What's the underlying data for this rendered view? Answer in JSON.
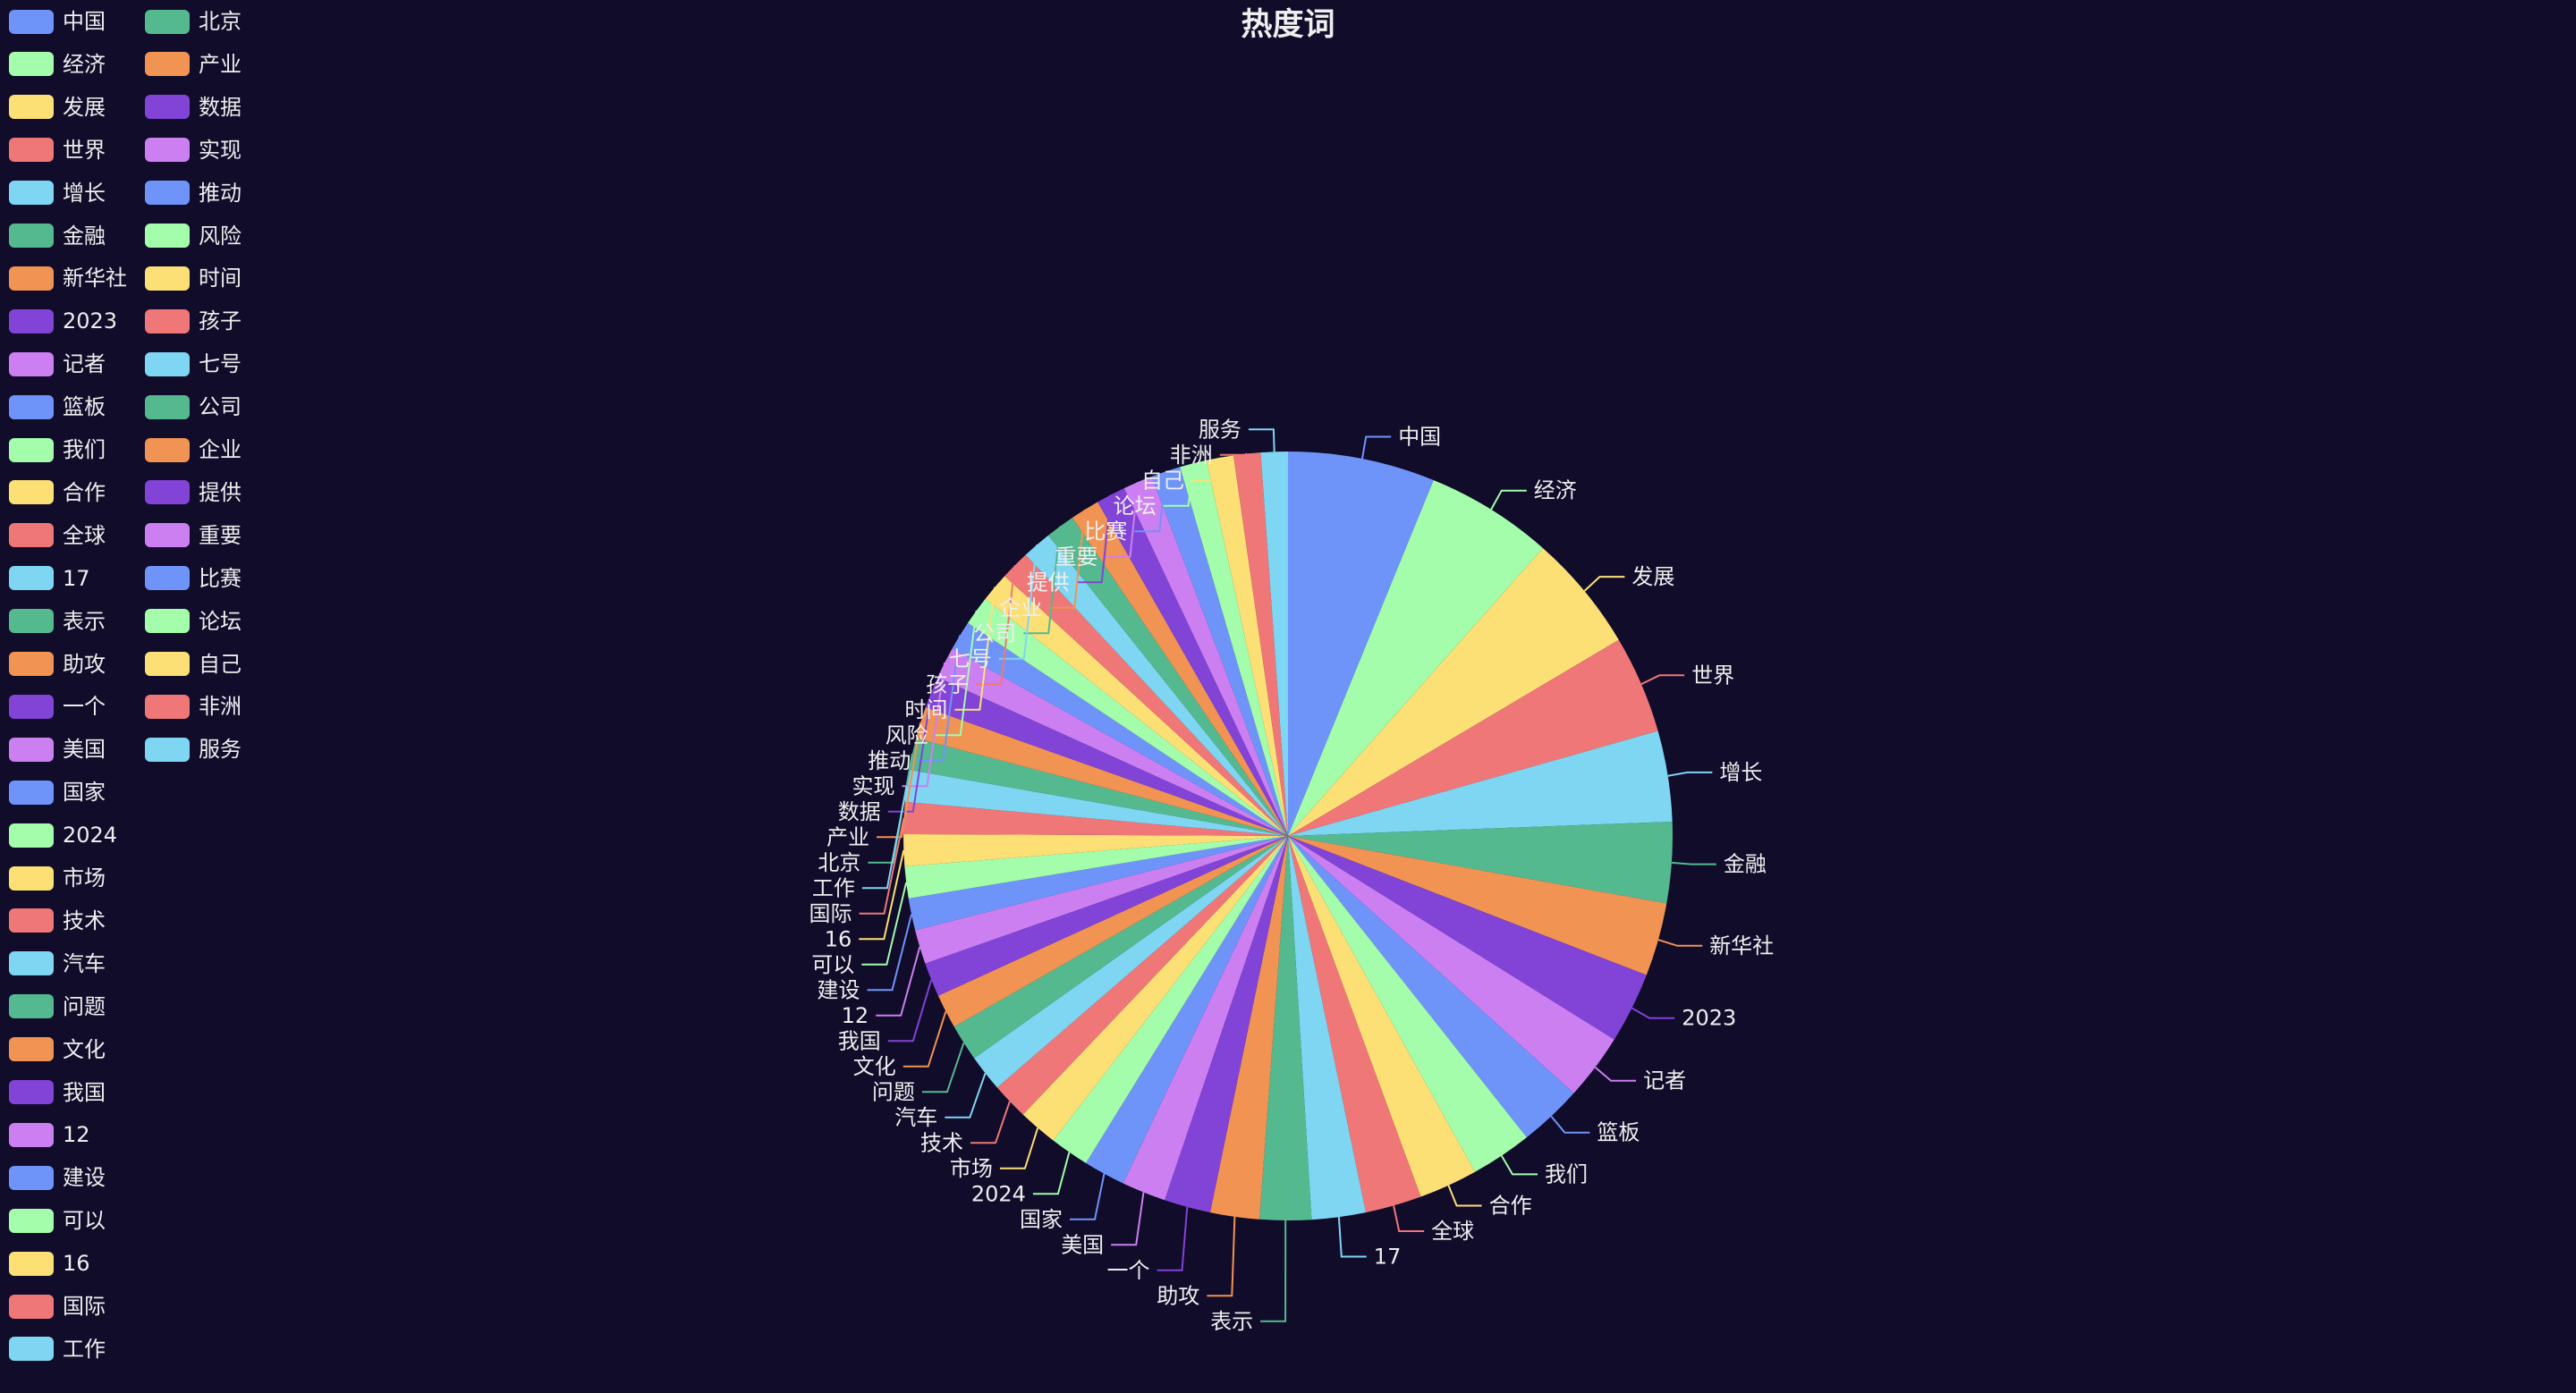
{
  "chart_data": {
    "type": "pie",
    "title": "热度词",
    "legend_position": "left",
    "colors": [
      "#5470c6",
      "#91cc75",
      "#fac858",
      "#ee6666",
      "#73c0de",
      "#3ba272",
      "#fc8452",
      "#9a60b4",
      "#ea7ccc"
    ],
    "palette": [
      "#6e94fa",
      "#a3fdab",
      "#fce075",
      "#f07777",
      "#7fd6f3",
      "#55b990",
      "#f19353",
      "#8243d7",
      "#cc7ff0"
    ],
    "categories": [
      "中国",
      "经济",
      "发展",
      "世界",
      "增长",
      "金融",
      "新华社",
      "2023",
      "记者",
      "篮板",
      "我们",
      "合作",
      "全球",
      "17",
      "表示",
      "助攻",
      "一个",
      "美国",
      "国家",
      "2024",
      "市场",
      "技术",
      "汽车",
      "问题",
      "文化",
      "我国",
      "12",
      "建设",
      "可以",
      "16",
      "国际",
      "工作",
      "北京",
      "产业",
      "数据",
      "实现",
      "推动",
      "风险",
      "时间",
      "孩子",
      "七号",
      "公司",
      "企业",
      "提供",
      "重要",
      "比赛",
      "论坛",
      "自己",
      "非洲",
      "服务"
    ],
    "values": [
      60,
      52,
      48,
      40,
      37,
      33,
      30,
      29,
      27,
      26,
      25,
      24,
      23,
      22,
      21,
      20,
      19,
      18,
      17,
      16,
      16,
      15,
      15,
      15,
      14,
      14,
      14,
      13,
      13,
      13,
      13,
      13,
      13,
      13,
      13,
      13,
      12,
      12,
      12,
      12,
      12,
      12,
      12,
      12,
      12,
      12,
      11,
      11,
      11,
      11
    ]
  }
}
